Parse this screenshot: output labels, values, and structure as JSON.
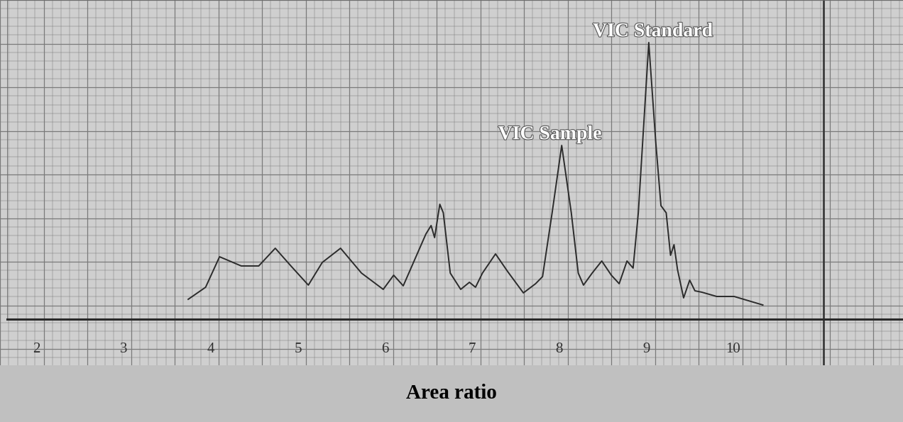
{
  "chart_data": {
    "type": "line",
    "x": [
      3.74,
      3.94,
      4.1,
      4.35,
      4.55,
      4.74,
      4.92,
      5.12,
      5.28,
      5.49,
      5.73,
      5.98,
      6.1,
      6.21,
      6.47,
      6.53,
      6.57,
      6.63,
      6.67,
      6.75,
      6.87,
      6.97,
      7.04,
      7.12,
      7.27,
      7.41,
      7.59,
      7.73,
      7.81,
      7.92,
      8.03,
      8.14,
      8.22,
      8.28,
      8.38,
      8.49,
      8.6,
      8.69,
      8.78,
      8.85,
      8.91,
      9.03,
      9.11,
      9.17,
      9.23,
      9.28,
      9.32,
      9.36,
      9.43,
      9.5,
      9.56,
      9.64,
      9.81,
      10.01,
      10.34
    ],
    "values": [
      2.8,
      4.5,
      8.8,
      7.5,
      7.5,
      10.0,
      7.5,
      4.8,
      8.0,
      10.0,
      6.5,
      4.2,
      6.2,
      4.7,
      12.0,
      13.2,
      11.5,
      16.2,
      15.0,
      6.5,
      4.2,
      5.2,
      4.5,
      6.5,
      9.2,
      6.7,
      3.7,
      5.0,
      6.0,
      15.0,
      24.5,
      15.0,
      6.5,
      4.8,
      6.5,
      8.2,
      6.2,
      5.0,
      8.2,
      7.2,
      15.0,
      39.0,
      25.0,
      16.0,
      15.0,
      9.0,
      10.5,
      7.0,
      3.0,
      5.5,
      4.0,
      3.8,
      3.2,
      3.2,
      2.0
    ],
    "color": "#2b2b2b",
    "xlim": [
      1.66,
      11.95
    ],
    "xticks": [
      2,
      3,
      4,
      5,
      6,
      7,
      8,
      9,
      10
    ],
    "ylim": [
      0,
      45
    ],
    "tick_labels": "x",
    "grid": true,
    "annotations": [
      {
        "text": "VIC Sample",
        "x": 8.03,
        "y": 24.5
      },
      {
        "text": "VIC Standard",
        "x": 9.03,
        "y": 39.0
      }
    ],
    "caption": "Area ratio"
  }
}
